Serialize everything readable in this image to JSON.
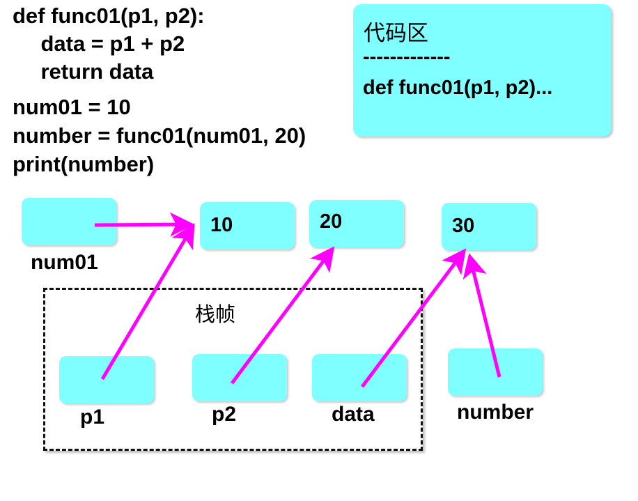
{
  "code": {
    "lines": [
      "def func01(p1, p2):",
      "    data = p1 + p2",
      "    return data",
      "num01 = 10",
      "number = func01(num01, 20)",
      "print(number)"
    ]
  },
  "code_area": {
    "title": "代码区",
    "separator": "-------------",
    "code": "def func01(p1, p2)..."
  },
  "values": {
    "ten": "10",
    "twenty": "20",
    "thirty": "30"
  },
  "variables": {
    "num01": "num01",
    "p1": "p1",
    "p2": "p2",
    "data": "data",
    "number": "number"
  },
  "stack_frame": {
    "label": "栈帧"
  },
  "colors": {
    "box_fill": "#7fffff",
    "arrow": "#ff00ff"
  }
}
